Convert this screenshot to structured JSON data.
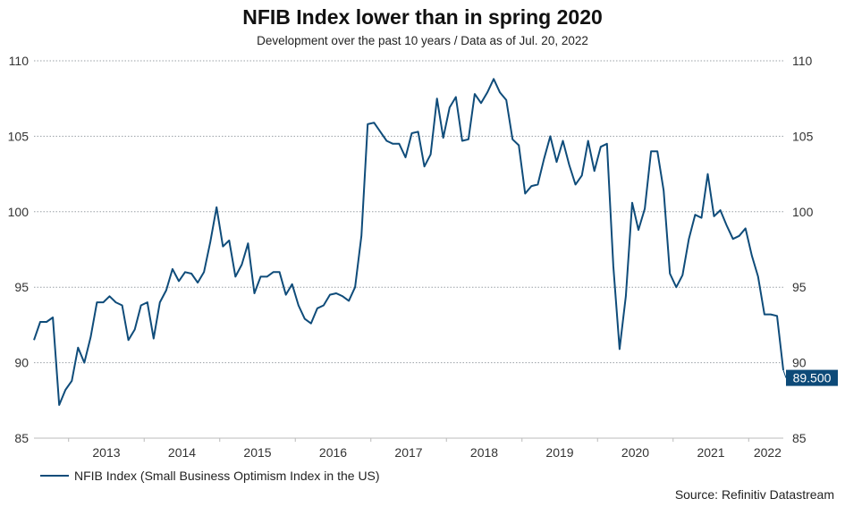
{
  "chart_data": {
    "type": "line",
    "title": "NFIB Index lower than in spring 2020",
    "subtitle": "Development over the past 10 years / Data as of Jul. 20, 2022",
    "start": "2012-07",
    "end": "2022-06",
    "frequency": "monthly",
    "xlabel": "",
    "ylabel": "",
    "ylim": [
      85,
      110
    ],
    "yticks": [
      85,
      90,
      95,
      100,
      105,
      110
    ],
    "xticks": [
      "2013",
      "2014",
      "2015",
      "2016",
      "2017",
      "2018",
      "2019",
      "2020",
      "2021",
      "2022"
    ],
    "grid": "horizontal dotted",
    "axes": "left and right",
    "legend_position": "bottom-left",
    "series": [
      {
        "name": "NFIB Index (Small Business Optimism Index in the US)",
        "color": "#0f4c7a",
        "values": [
          91.5,
          92.7,
          92.7,
          93.0,
          87.2,
          88.2,
          88.8,
          91.0,
          90.0,
          91.7,
          94.0,
          94.0,
          94.4,
          94.0,
          93.8,
          91.5,
          92.2,
          93.8,
          94.0,
          91.6,
          94.0,
          94.8,
          96.2,
          95.4,
          96.0,
          95.9,
          95.3,
          96.0,
          98.0,
          100.3,
          97.7,
          98.1,
          95.7,
          96.5,
          97.9,
          94.6,
          95.7,
          95.7,
          96.0,
          96.0,
          94.5,
          95.2,
          93.8,
          92.9,
          92.6,
          93.6,
          93.8,
          94.5,
          94.6,
          94.4,
          94.1,
          95.0,
          98.4,
          105.8,
          105.9,
          105.3,
          104.7,
          104.5,
          104.5,
          103.6,
          105.2,
          105.3,
          103.0,
          103.8,
          107.5,
          104.9,
          106.9,
          107.6,
          104.7,
          104.8,
          107.8,
          107.2,
          107.9,
          108.8,
          107.9,
          107.4,
          104.8,
          104.4,
          101.2,
          101.7,
          101.8,
          103.5,
          105.0,
          103.3,
          104.7,
          103.1,
          101.8,
          102.4,
          104.7,
          102.7,
          104.3,
          104.5,
          96.4,
          90.9,
          94.4,
          100.6,
          98.8,
          100.2,
          104.0,
          104.0,
          101.4,
          95.9,
          95.0,
          95.8,
          98.2,
          99.8,
          99.6,
          102.5,
          99.7,
          100.1,
          99.1,
          98.2,
          98.4,
          98.9,
          97.1,
          95.7,
          93.2,
          93.2,
          93.1,
          89.5
        ]
      }
    ],
    "last_value_label": "89.500",
    "source": "Source: Refinitiv Datastream"
  }
}
